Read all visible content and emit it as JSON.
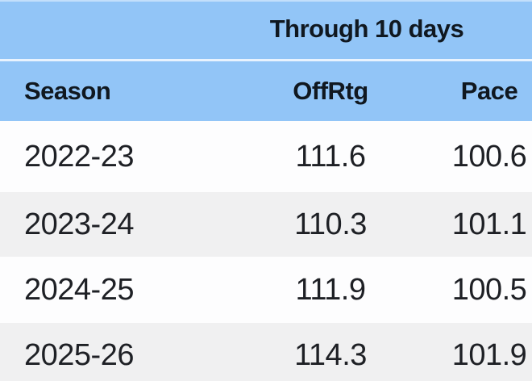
{
  "chart_data": {
    "type": "table",
    "title": "Through 10 days",
    "columns": [
      "Season",
      "OffRtg",
      "Pace"
    ],
    "rows": [
      [
        "2022-23",
        "111.6",
        "100.6"
      ],
      [
        "2023-24",
        "110.3",
        "101.1"
      ],
      [
        "2024-25",
        "111.9",
        "100.5"
      ],
      [
        "2025-26",
        "114.3",
        "101.9"
      ]
    ],
    "layout": {
      "span_header_over_columns": [
        "OffRtg",
        "Pace"
      ],
      "striped_rows": true,
      "grid": false
    }
  },
  "colors": {
    "header_bg": "#92C5F7",
    "divider": "#E9F3FE",
    "row_bg": "#FDFDFE",
    "row_alt_bg": "#F0F0F1",
    "header_text": "#101820",
    "body_text": "#1E2025"
  }
}
